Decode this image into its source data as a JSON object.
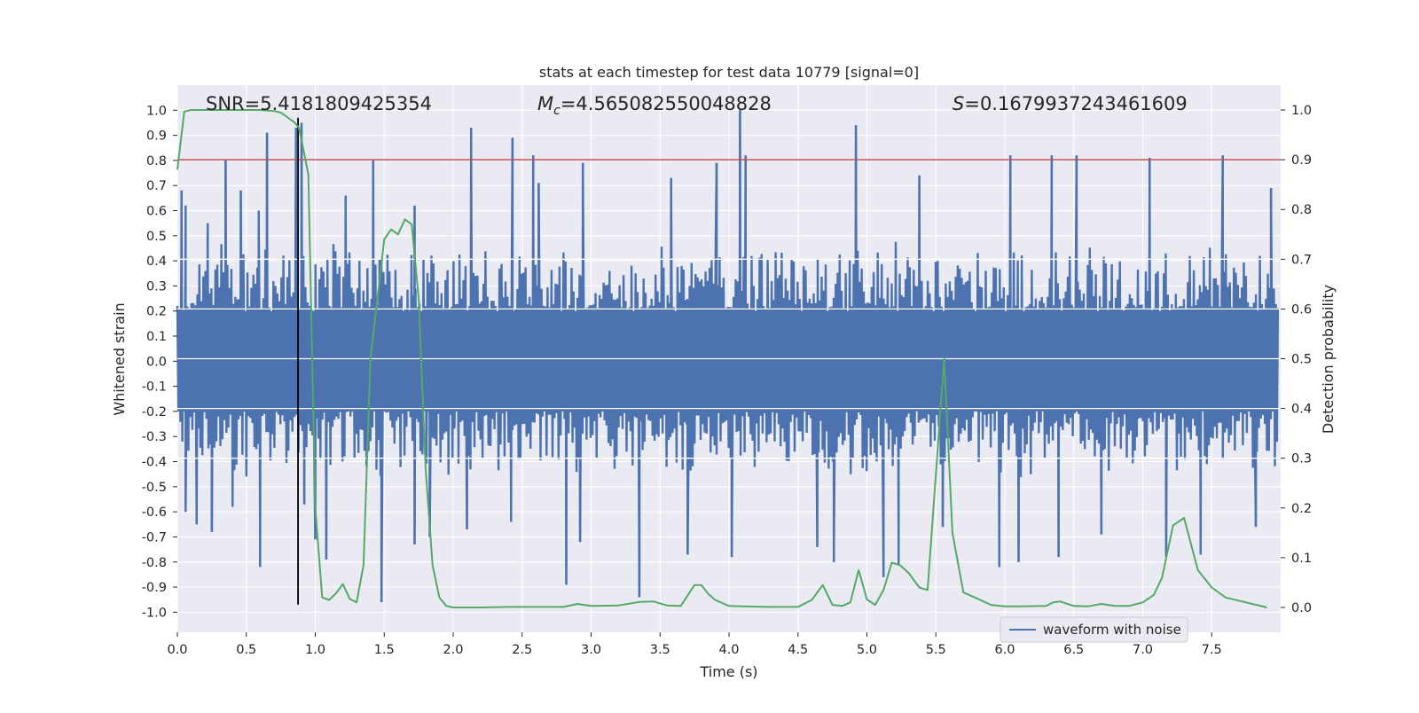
{
  "chart_data": {
    "type": "line",
    "title": "stats at each timestep for test data 10779 [signal=0]",
    "xlabel": "Time (s)",
    "ylabel": "Whitened strain",
    "y2label": "Detection probability",
    "xlim": [
      0.0,
      8.0
    ],
    "ylim": [
      -1.08,
      1.1
    ],
    "y2lim": [
      -0.05,
      1.05
    ],
    "x_ticks": [
      0.0,
      0.5,
      1.0,
      1.5,
      2.0,
      2.5,
      3.0,
      3.5,
      4.0,
      4.5,
      5.0,
      5.5,
      6.0,
      6.5,
      7.0,
      7.5
    ],
    "y_ticks": [
      -1.0,
      -0.9,
      -0.8,
      -0.7,
      -0.6,
      -0.5,
      -0.4,
      -0.3,
      -0.2,
      -0.1,
      0.0,
      0.1,
      0.2,
      0.3,
      0.4,
      0.5,
      0.6,
      0.7,
      0.8,
      0.9,
      1.0
    ],
    "y2_ticks": [
      0.0,
      0.1,
      0.2,
      0.3,
      0.4,
      0.5,
      0.6,
      0.7,
      0.8,
      0.9,
      1.0
    ],
    "grid": true,
    "legend": {
      "entries": [
        "waveform with noise"
      ],
      "placement": "lower-right"
    },
    "annotations": {
      "snr": "SNR=5.4181809425354",
      "mc_symbol": "M",
      "mc_sub": "c",
      "mc_value": "=4.565082550048828",
      "s_symbol": "S",
      "s_value": "=0.1679937243461609"
    },
    "threshold_line": {
      "axis": "y2",
      "value": 0.9,
      "color": "#c44e52"
    },
    "marker_line": {
      "x": 0.875,
      "y_from": -0.97,
      "y_to": 0.97,
      "color": "#000000"
    },
    "series": [
      {
        "name": "waveform with noise",
        "axis": "y",
        "color": "#4c72b0",
        "description": "noise trace, 8 s at dense sampling; dense band spans about ±0.2 to ±0.45 with spikes up to ±1.0",
        "peaks_up": [
          [
            0.03,
            0.68
          ],
          [
            0.06,
            0.62
          ],
          [
            0.22,
            0.55
          ],
          [
            0.35,
            0.8
          ],
          [
            0.46,
            0.68
          ],
          [
            0.59,
            0.6
          ],
          [
            0.65,
            0.91
          ],
          [
            0.86,
            0.93
          ],
          [
            0.9,
            0.95
          ],
          [
            1.22,
            0.66
          ],
          [
            1.42,
            0.8
          ],
          [
            1.72,
            0.62
          ],
          [
            2.13,
            0.93
          ],
          [
            2.43,
            0.89
          ],
          [
            2.58,
            0.82
          ],
          [
            2.62,
            0.71
          ],
          [
            2.94,
            0.79
          ],
          [
            3.58,
            0.73
          ],
          [
            3.91,
            0.79
          ],
          [
            4.08,
            1.0
          ],
          [
            4.12,
            0.82
          ],
          [
            4.92,
            0.94
          ],
          [
            5.38,
            0.74
          ],
          [
            6.04,
            0.82
          ],
          [
            6.34,
            0.82
          ],
          [
            6.52,
            0.82
          ],
          [
            7.05,
            0.81
          ],
          [
            7.58,
            0.82
          ],
          [
            7.93,
            0.69
          ]
        ],
        "peaks_down": [
          [
            0.06,
            -0.6
          ],
          [
            0.14,
            -0.65
          ],
          [
            0.25,
            -0.68
          ],
          [
            0.4,
            -0.58
          ],
          [
            0.6,
            -0.82
          ],
          [
            0.92,
            -0.57
          ],
          [
            1.0,
            -0.71
          ],
          [
            1.08,
            -0.79
          ],
          [
            1.48,
            -0.96
          ],
          [
            1.72,
            -0.73
          ],
          [
            1.83,
            -0.7
          ],
          [
            2.1,
            -0.67
          ],
          [
            2.42,
            -0.64
          ],
          [
            2.82,
            -0.89
          ],
          [
            2.92,
            -0.72
          ],
          [
            3.35,
            -0.94
          ],
          [
            3.7,
            -0.77
          ],
          [
            4.02,
            -0.78
          ],
          [
            4.64,
            -0.74
          ],
          [
            4.76,
            -0.8
          ],
          [
            5.12,
            -0.86
          ],
          [
            5.23,
            -0.81
          ],
          [
            5.55,
            -0.66
          ],
          [
            5.96,
            -0.82
          ],
          [
            6.1,
            -0.8
          ],
          [
            6.39,
            -0.78
          ],
          [
            6.7,
            -0.69
          ],
          [
            7.17,
            -0.78
          ],
          [
            7.42,
            -0.77
          ],
          [
            7.82,
            -0.66
          ]
        ]
      },
      {
        "name": "detection probability",
        "axis": "y2",
        "color": "#55a868",
        "x": [
          0.0,
          0.05,
          0.1,
          0.2,
          0.3,
          0.4,
          0.5,
          0.6,
          0.7,
          0.75,
          0.8,
          0.85,
          0.88,
          0.9,
          0.95,
          1.0,
          1.05,
          1.1,
          1.15,
          1.2,
          1.25,
          1.3,
          1.35,
          1.4,
          1.45,
          1.5,
          1.55,
          1.6,
          1.65,
          1.7,
          1.75,
          1.8,
          1.85,
          1.9,
          1.95,
          2.0,
          2.05,
          2.2,
          2.4,
          2.6,
          2.8,
          2.9,
          3.0,
          3.2,
          3.35,
          3.45,
          3.55,
          3.65,
          3.75,
          3.8,
          3.85,
          3.9,
          4.0,
          4.1,
          4.3,
          4.5,
          4.6,
          4.68,
          4.75,
          4.82,
          4.88,
          4.94,
          5.0,
          5.06,
          5.12,
          5.18,
          5.24,
          5.3,
          5.38,
          5.44,
          5.56,
          5.62,
          5.7,
          5.8,
          5.9,
          6.0,
          6.1,
          6.3,
          6.35,
          6.4,
          6.5,
          6.6,
          6.7,
          6.8,
          6.9,
          7.0,
          7.08,
          7.14,
          7.22,
          7.3,
          7.4,
          7.5,
          7.6,
          7.9
        ],
        "values": [
          0.88,
          0.997,
          1.0,
          1.0,
          1.0,
          1.0,
          1.0,
          1.0,
          0.998,
          0.995,
          0.985,
          0.975,
          0.965,
          0.94,
          0.87,
          0.2,
          0.02,
          0.015,
          0.028,
          0.047,
          0.017,
          0.01,
          0.085,
          0.5,
          0.62,
          0.74,
          0.76,
          0.75,
          0.78,
          0.77,
          0.62,
          0.28,
          0.085,
          0.02,
          0.003,
          0.0,
          0.0,
          0.0,
          0.001,
          0.001,
          0.001,
          0.007,
          0.003,
          0.004,
          0.011,
          0.012,
          0.004,
          0.003,
          0.045,
          0.045,
          0.027,
          0.015,
          0.003,
          0.002,
          0.001,
          0.001,
          0.015,
          0.045,
          0.005,
          0.003,
          0.01,
          0.075,
          0.016,
          0.005,
          0.035,
          0.09,
          0.085,
          0.07,
          0.04,
          0.035,
          0.5,
          0.15,
          0.03,
          0.018,
          0.005,
          0.002,
          0.002,
          0.003,
          0.01,
          0.012,
          0.003,
          0.002,
          0.007,
          0.003,
          0.003,
          0.01,
          0.025,
          0.06,
          0.165,
          0.18,
          0.075,
          0.04,
          0.02,
          0.0
        ]
      }
    ]
  }
}
